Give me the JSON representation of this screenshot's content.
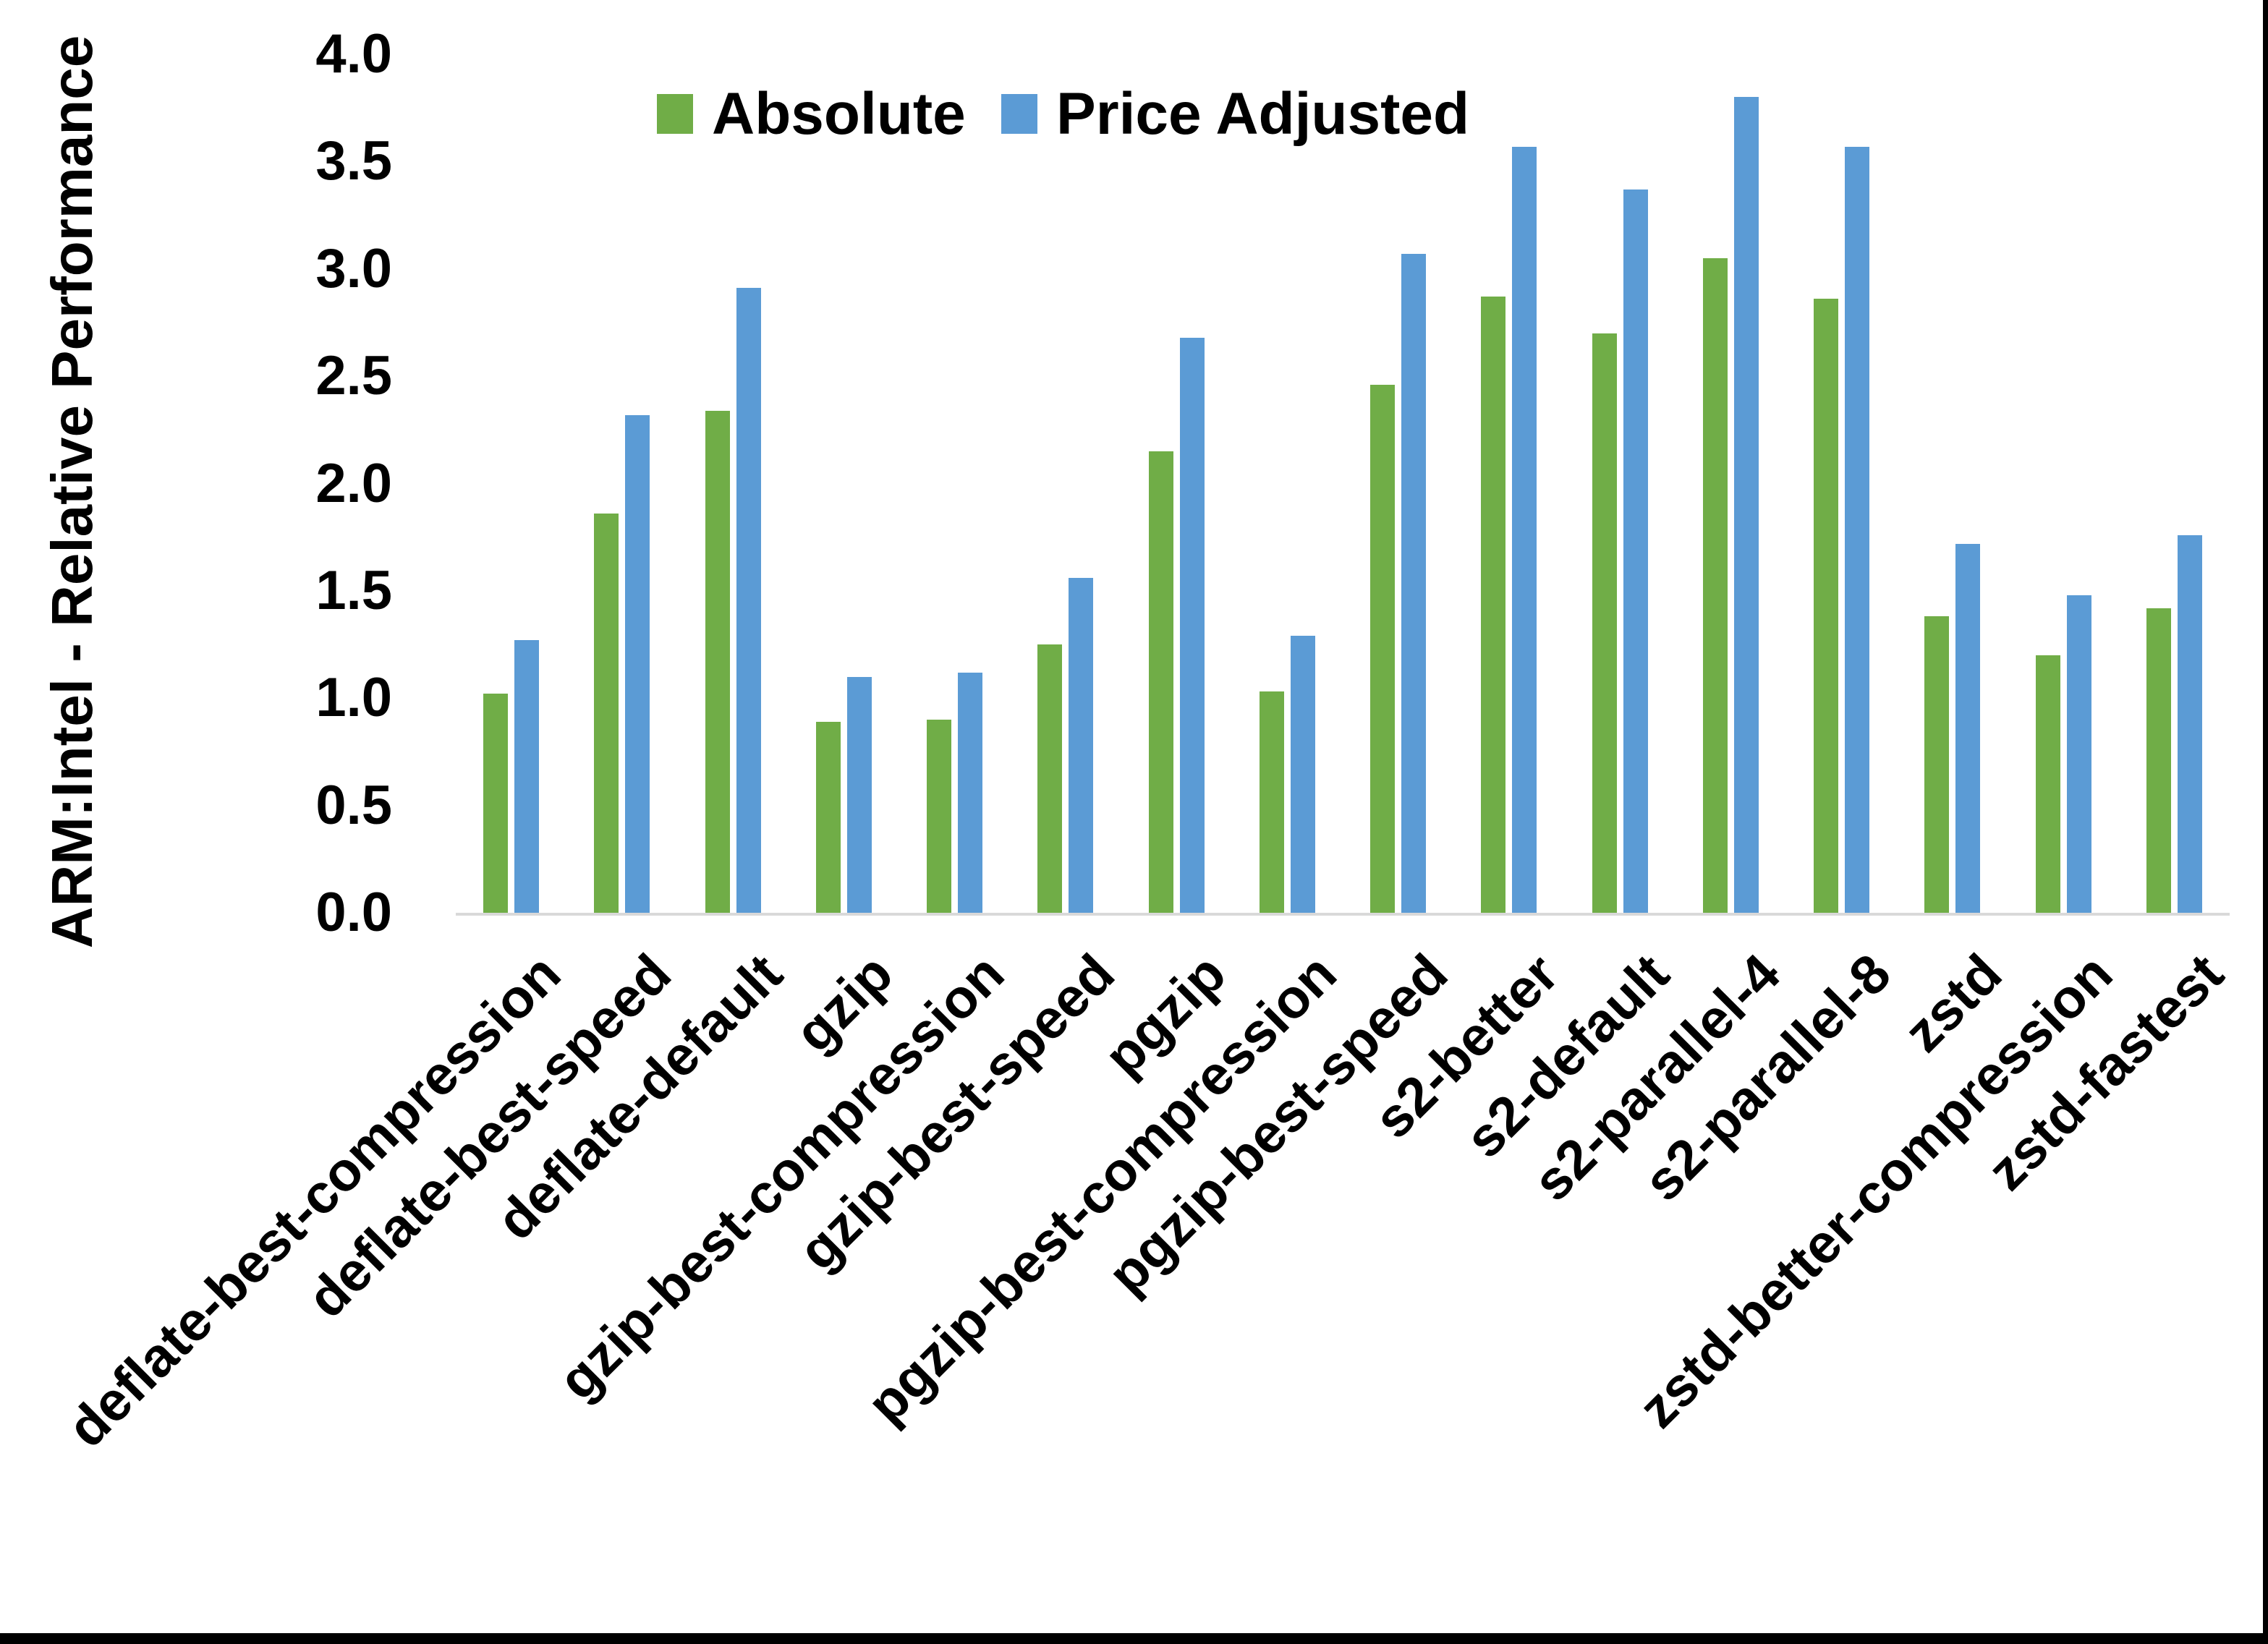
{
  "chart_data": {
    "type": "bar",
    "title": "",
    "xlabel": "",
    "ylabel": "ARM:Intel - Relative Performance",
    "ylim": [
      0.0,
      4.0
    ],
    "ytick_step": 0.5,
    "yticks": [
      "0.0",
      "0.5",
      "1.0",
      "1.5",
      "2.0",
      "2.5",
      "3.0",
      "3.5",
      "4.0"
    ],
    "grid": false,
    "legend_position": "top-center",
    "categories": [
      "deflate-best-compression",
      "deflate-best-speed",
      "deflate-default",
      "gzip",
      "gzip-best-compression",
      "gzip-best-speed",
      "pgzip",
      "pgzip-best-compression",
      "pgzip-best-speed",
      "s2-better",
      "s2-default",
      "s2-parallel-4",
      "s2-parallel-8",
      "zstd",
      "zstd-better-compression",
      "zstd-fastest"
    ],
    "series": [
      {
        "name": "Absolute",
        "color": "#70AD47",
        "values": [
          1.02,
          1.86,
          2.34,
          0.89,
          0.9,
          1.25,
          2.15,
          1.03,
          2.46,
          2.87,
          2.7,
          3.05,
          2.86,
          1.38,
          1.2,
          1.42
        ]
      },
      {
        "name": "Price Adjusted",
        "color": "#5B9BD5",
        "values": [
          1.27,
          2.32,
          2.91,
          1.1,
          1.12,
          1.56,
          2.68,
          1.29,
          3.07,
          3.57,
          3.37,
          3.8,
          3.57,
          1.72,
          1.48,
          1.76
        ]
      }
    ]
  },
  "legend": {
    "absolute_label": "Absolute",
    "price_adjusted_label": "Price Adjusted"
  },
  "axis": {
    "y_title": "ARM:Intel - Relative Performance"
  },
  "colors": {
    "absolute": "#70AD47",
    "price_adjusted": "#5B9BD5",
    "axis_line": "#D9D9D9",
    "border": "#000000",
    "background": "#FFFFFF"
  }
}
